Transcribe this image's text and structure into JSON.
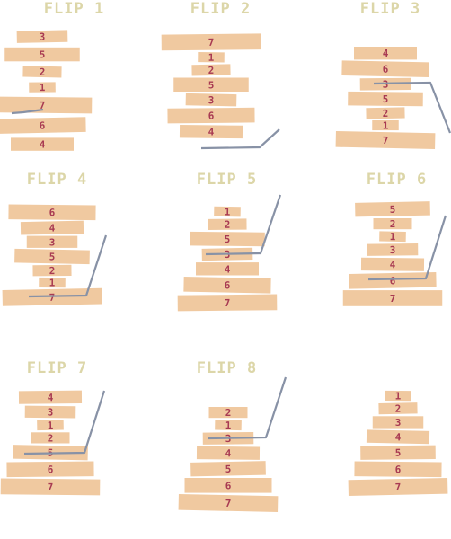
{
  "colors": {
    "pancake": "#f0c9a0",
    "number": "#a83a52",
    "spatula": "#8892a6",
    "title": "#dcd6a8"
  },
  "panels": [
    {
      "title": "FLIP 1",
      "stack": [
        3,
        5,
        2,
        1,
        7,
        6,
        4
      ]
    },
    {
      "title": "FLIP 2",
      "stack": [
        7,
        1,
        2,
        5,
        3,
        6,
        4
      ]
    },
    {
      "title": "FLIP 3",
      "stack": [
        4,
        6,
        3,
        5,
        2,
        1,
        7
      ]
    },
    {
      "title": "FLIP 4",
      "stack": [
        6,
        4,
        3,
        5,
        2,
        1,
        7
      ]
    },
    {
      "title": "FLIP 5",
      "stack": [
        1,
        2,
        5,
        3,
        4,
        6,
        7
      ]
    },
    {
      "title": "FLIP 6",
      "stack": [
        5,
        2,
        1,
        3,
        4,
        6,
        7
      ]
    },
    {
      "title": "FLIP 7",
      "stack": [
        4,
        3,
        1,
        2,
        5,
        6,
        7
      ]
    },
    {
      "title": "FLIP 8",
      "stack": [
        2,
        1,
        3,
        4,
        5,
        6,
        7
      ]
    },
    {
      "title": "",
      "stack": [
        1,
        2,
        3,
        4,
        5,
        6,
        7
      ]
    }
  ]
}
